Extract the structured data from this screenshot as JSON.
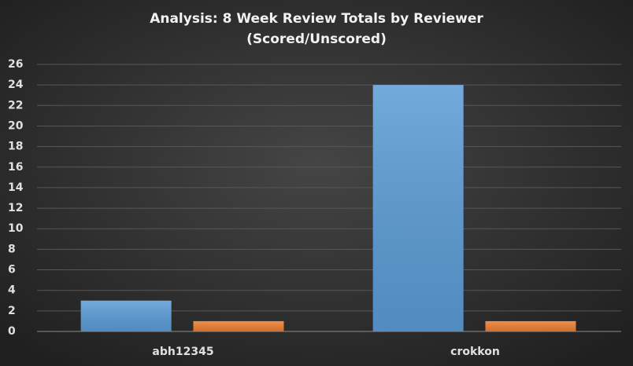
{
  "chart_data": {
    "type": "bar",
    "title": [
      "Analysis:  8 Week Review Totals  by Reviewer",
      "(Scored/Unscored)"
    ],
    "categories": [
      "abh12345",
      "crokkon"
    ],
    "series": [
      {
        "color": "#5b9bd5",
        "values": [
          3,
          24
        ]
      },
      {
        "color": "#ed7d31",
        "values": [
          1,
          1
        ]
      }
    ],
    "ylim": [
      0,
      26
    ],
    "yticks": [
      0,
      2,
      4,
      6,
      8,
      10,
      12,
      14,
      16,
      18,
      20,
      22,
      24,
      26
    ],
    "grid": true
  }
}
